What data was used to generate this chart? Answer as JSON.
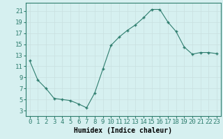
{
  "x": [
    0,
    1,
    2,
    3,
    4,
    5,
    6,
    7,
    8,
    9,
    10,
    11,
    12,
    13,
    14,
    15,
    16,
    17,
    18,
    19,
    20,
    21,
    22,
    23
  ],
  "y": [
    12,
    8.5,
    7.0,
    5.2,
    5.0,
    4.8,
    4.2,
    3.5,
    6.2,
    10.5,
    14.8,
    16.3,
    17.5,
    18.5,
    19.8,
    21.3,
    21.3,
    19.0,
    17.3,
    14.5,
    13.2,
    13.5,
    13.5,
    13.3
  ],
  "line_color": "#2e7d6e",
  "bg_color": "#d6f0f0",
  "grid_color": "#c8e0e0",
  "xlabel": "Humidex (Indice chaleur)",
  "yticks": [
    3,
    5,
    7,
    9,
    11,
    13,
    15,
    17,
    19,
    21
  ],
  "xticks": [
    0,
    1,
    2,
    3,
    4,
    5,
    6,
    7,
    8,
    9,
    10,
    11,
    12,
    13,
    14,
    15,
    16,
    17,
    18,
    19,
    20,
    21,
    22,
    23
  ],
  "ylim": [
    2.0,
    22.5
  ],
  "xlim": [
    -0.5,
    23.5
  ],
  "xlabel_fontsize": 7,
  "tick_fontsize": 6.5,
  "spine_color": "#2e7d6e"
}
